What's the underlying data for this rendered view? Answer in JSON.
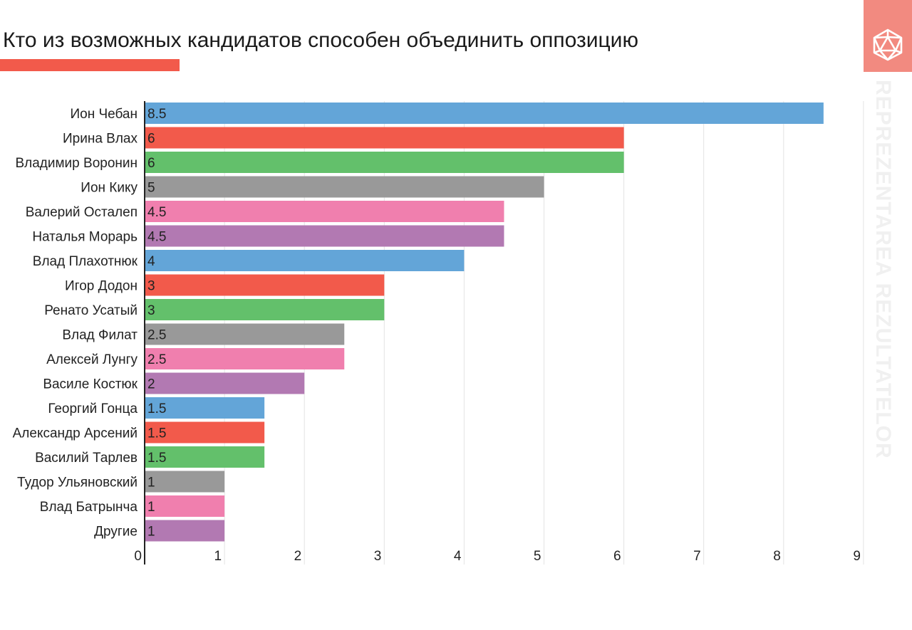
{
  "header": {
    "title": "Кто из возможных кандидатов способен объединить оппозицию",
    "accent_color": "#f25a4b"
  },
  "brand": {
    "vertical_text": "REPREZENTAREA REZULTATELOR",
    "logo_icon": "d20-dice-icon",
    "block_color": "#f28a80",
    "text_color": "#f0f0f0"
  },
  "chart_data": {
    "type": "bar",
    "orientation": "horizontal",
    "title": "Кто из возможных кандидатов способен объединить оппозицию",
    "xlabel": "",
    "ylabel": "",
    "xlim": [
      0,
      9
    ],
    "x_ticks": [
      "0",
      "1",
      "2",
      "3",
      "4",
      "5",
      "6",
      "7",
      "8",
      "9"
    ],
    "grid": true,
    "data_labels": true,
    "categories": [
      "Ион Чебан",
      "Ирина Влах",
      "Владимир Воронин",
      "Ион Кику",
      "Валерий Осталеп",
      "Наталья Морарь",
      "Влад Плахотнюк",
      "Игор Додон",
      "Ренато Усатый",
      "Влад Филат",
      "Алексей Лунгу",
      "Василе Костюк",
      "Георгий Гонца",
      "Александр Арсений",
      "Василий Тарлев",
      "Тудор Ульяновский",
      "Влад Батрынча",
      "Другие"
    ],
    "values": [
      8.5,
      6,
      6,
      5,
      4.5,
      4.5,
      4,
      3,
      3,
      2.5,
      2.5,
      2,
      1.5,
      1.5,
      1.5,
      1,
      1,
      1
    ],
    "value_labels": [
      "8.5",
      "6",
      "6",
      "5",
      "4.5",
      "4.5",
      "4",
      "3",
      "3",
      "2.5",
      "2.5",
      "2",
      "1.5",
      "1.5",
      "1.5",
      "1",
      "1",
      "1"
    ],
    "colors": [
      "#63a5d8",
      "#f25a4b",
      "#63c06b",
      "#999999",
      "#f07fae",
      "#b279b2",
      "#63a5d8",
      "#f25a4b",
      "#63c06b",
      "#999999",
      "#f07fae",
      "#b279b2",
      "#63a5d8",
      "#f25a4b",
      "#63c06b",
      "#999999",
      "#f07fae",
      "#b279b2"
    ]
  }
}
